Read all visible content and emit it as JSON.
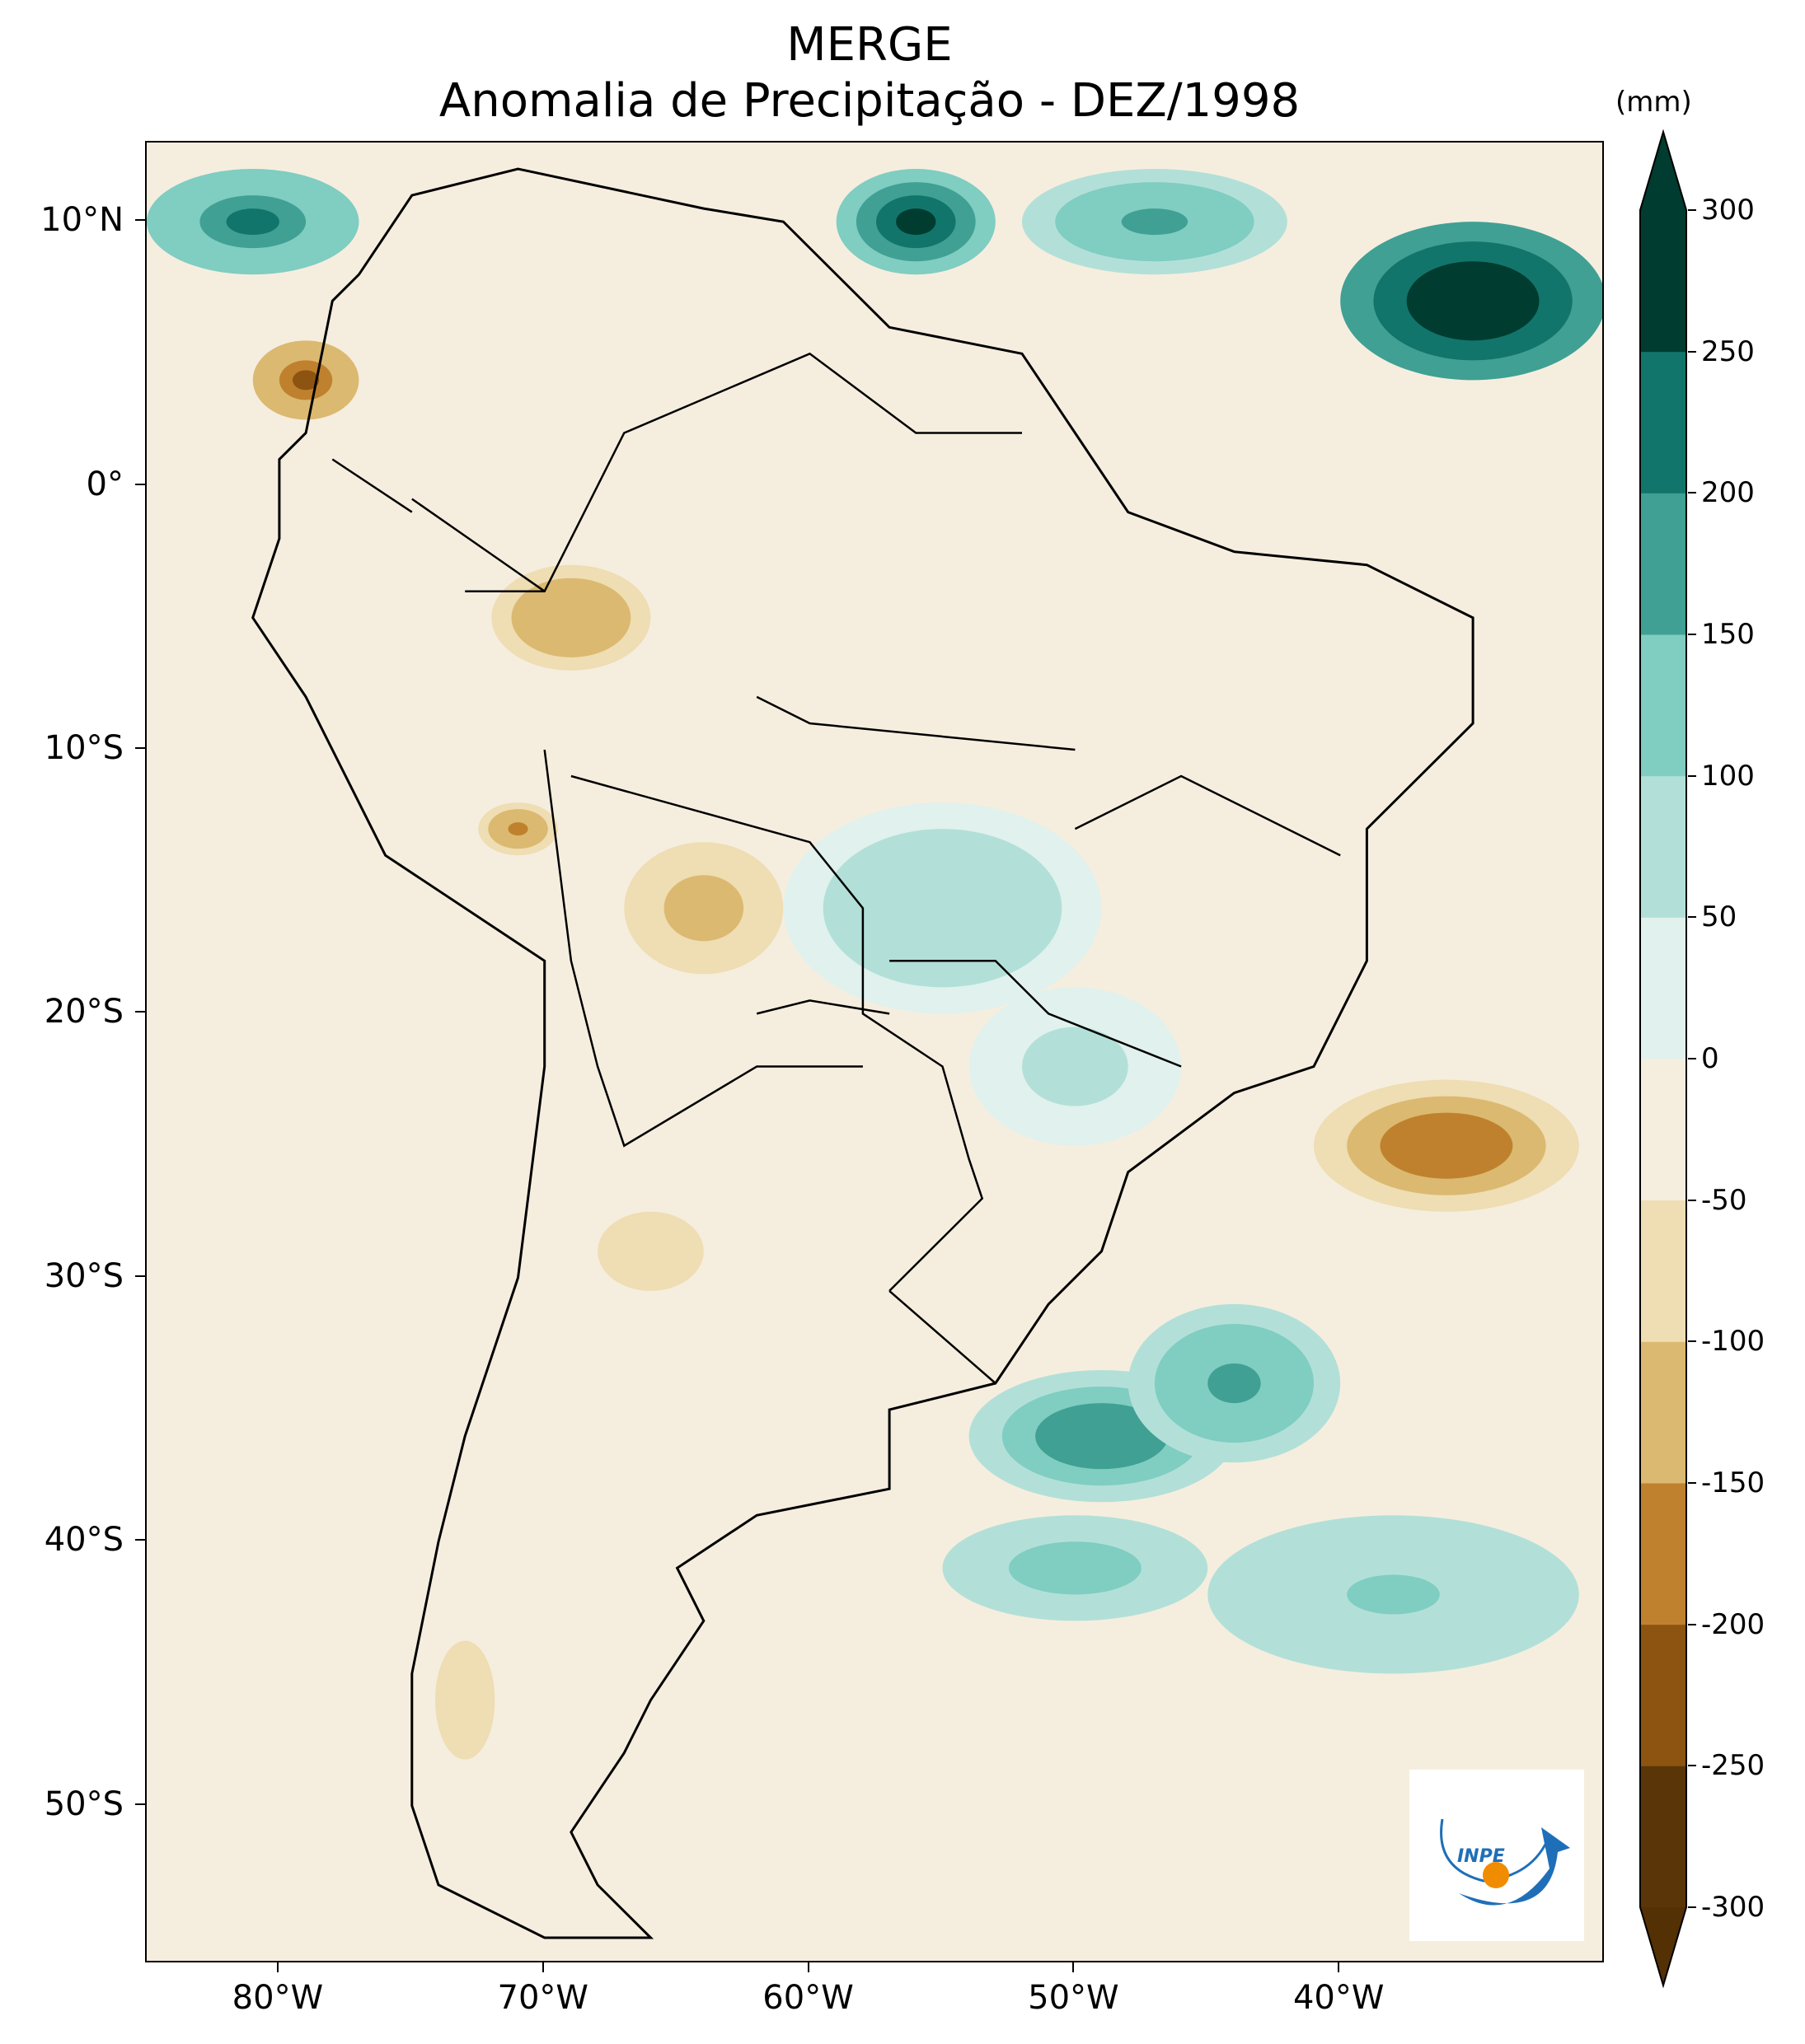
{
  "title": {
    "line1": "MERGE",
    "line2": "Anomalia de Precipitação - DEZ/1998"
  },
  "map": {
    "extent": {
      "lon_min": -85,
      "lon_max": -30,
      "lat_min": -56,
      "lat_max": 13
    },
    "lat_ticks": [
      {
        "value": 10,
        "label": "10°N"
      },
      {
        "value": 0,
        "label": "0°"
      },
      {
        "value": -10,
        "label": "10°S"
      },
      {
        "value": -20,
        "label": "20°S"
      },
      {
        "value": -30,
        "label": "30°S"
      },
      {
        "value": -40,
        "label": "40°S"
      },
      {
        "value": -50,
        "label": "50°S"
      }
    ],
    "lon_ticks": [
      {
        "value": -80,
        "label": "80°W"
      },
      {
        "value": -70,
        "label": "70°W"
      },
      {
        "value": -60,
        "label": "60°W"
      },
      {
        "value": -50,
        "label": "50°W"
      },
      {
        "value": -40,
        "label": "40°W"
      }
    ],
    "anomaly_regions": [
      {
        "name": "caribbean-wet",
        "lon": -81,
        "lat": 10,
        "value": 220,
        "rx": 4,
        "ry": 2
      },
      {
        "name": "atlantic-north-wet-1",
        "lon": -56,
        "lat": 10,
        "value": 280,
        "rx": 3,
        "ry": 2
      },
      {
        "name": "atlantic-north-wet-2",
        "lon": -35,
        "lat": 7,
        "value": 300,
        "rx": 5,
        "ry": 3
      },
      {
        "name": "atlantic-north-wet-3",
        "lon": -47,
        "lat": 10,
        "value": 160,
        "rx": 5,
        "ry": 2
      },
      {
        "name": "colombia-pacific-dry",
        "lon": -79,
        "lat": 4,
        "value": -220,
        "rx": 2,
        "ry": 1.5
      },
      {
        "name": "amazon-dry",
        "lon": -69,
        "lat": -5,
        "value": -150,
        "rx": 3,
        "ry": 2
      },
      {
        "name": "peru-dry",
        "lon": -71,
        "lat": -13,
        "value": -170,
        "rx": 1.5,
        "ry": 1
      },
      {
        "name": "bolivia-dry",
        "lon": -64,
        "lat": -16,
        "value": -120,
        "rx": 3,
        "ry": 2.5
      },
      {
        "name": "central-brazil-wet",
        "lon": -55,
        "lat": -16,
        "value": 80,
        "rx": 6,
        "ry": 4
      },
      {
        "name": "southeast-wet",
        "lon": -50,
        "lat": -22,
        "value": 70,
        "rx": 4,
        "ry": 3
      },
      {
        "name": "atlantic-se-dry",
        "lon": -36,
        "lat": -25,
        "value": -180,
        "rx": 5,
        "ry": 2.5
      },
      {
        "name": "atlantic-south-wet-1",
        "lon": -49,
        "lat": -36,
        "value": 190,
        "rx": 5,
        "ry": 2.5
      },
      {
        "name": "atlantic-south-wet-2",
        "lon": -44,
        "lat": -34,
        "value": 160,
        "rx": 4,
        "ry": 3
      },
      {
        "name": "atlantic-south-wet-3",
        "lon": -50,
        "lat": -41,
        "value": 130,
        "rx": 5,
        "ry": 2
      },
      {
        "name": "atlantic-band-wet",
        "lon": -38,
        "lat": -42,
        "value": 110,
        "rx": 7,
        "ry": 3
      },
      {
        "name": "argentina-dry",
        "lon": -66,
        "lat": -29,
        "value": -60,
        "rx": 4,
        "ry": 3
      },
      {
        "name": "patagonia-dry",
        "lon": -73,
        "lat": -46,
        "value": -90,
        "rx": 1.5,
        "ry": 3
      }
    ]
  },
  "colorbar": {
    "unit": "(mm)",
    "min": -300,
    "max": 300,
    "levels": [
      -300,
      -250,
      -200,
      -150,
      -100,
      -50,
      0,
      50,
      100,
      150,
      200,
      250,
      300
    ],
    "tick_labels": [
      "-300",
      "-250",
      "-200",
      "-150",
      "-100",
      "-50",
      "0",
      "50",
      "100",
      "150",
      "200",
      "250",
      "300"
    ],
    "colors": [
      "#5a3507",
      "#8c5410",
      "#bf812d",
      "#dbb970",
      "#efddb3",
      "#f5eedf",
      "#e1f1ed",
      "#b2e0d8",
      "#80cdc1",
      "#40a094",
      "#12756b",
      "#003c30"
    ],
    "extend_low": "#543005",
    "extend_high": "#003c30"
  },
  "logo": {
    "text": "INPE",
    "blue": "#1f6fb8",
    "orange": "#f08c00"
  }
}
